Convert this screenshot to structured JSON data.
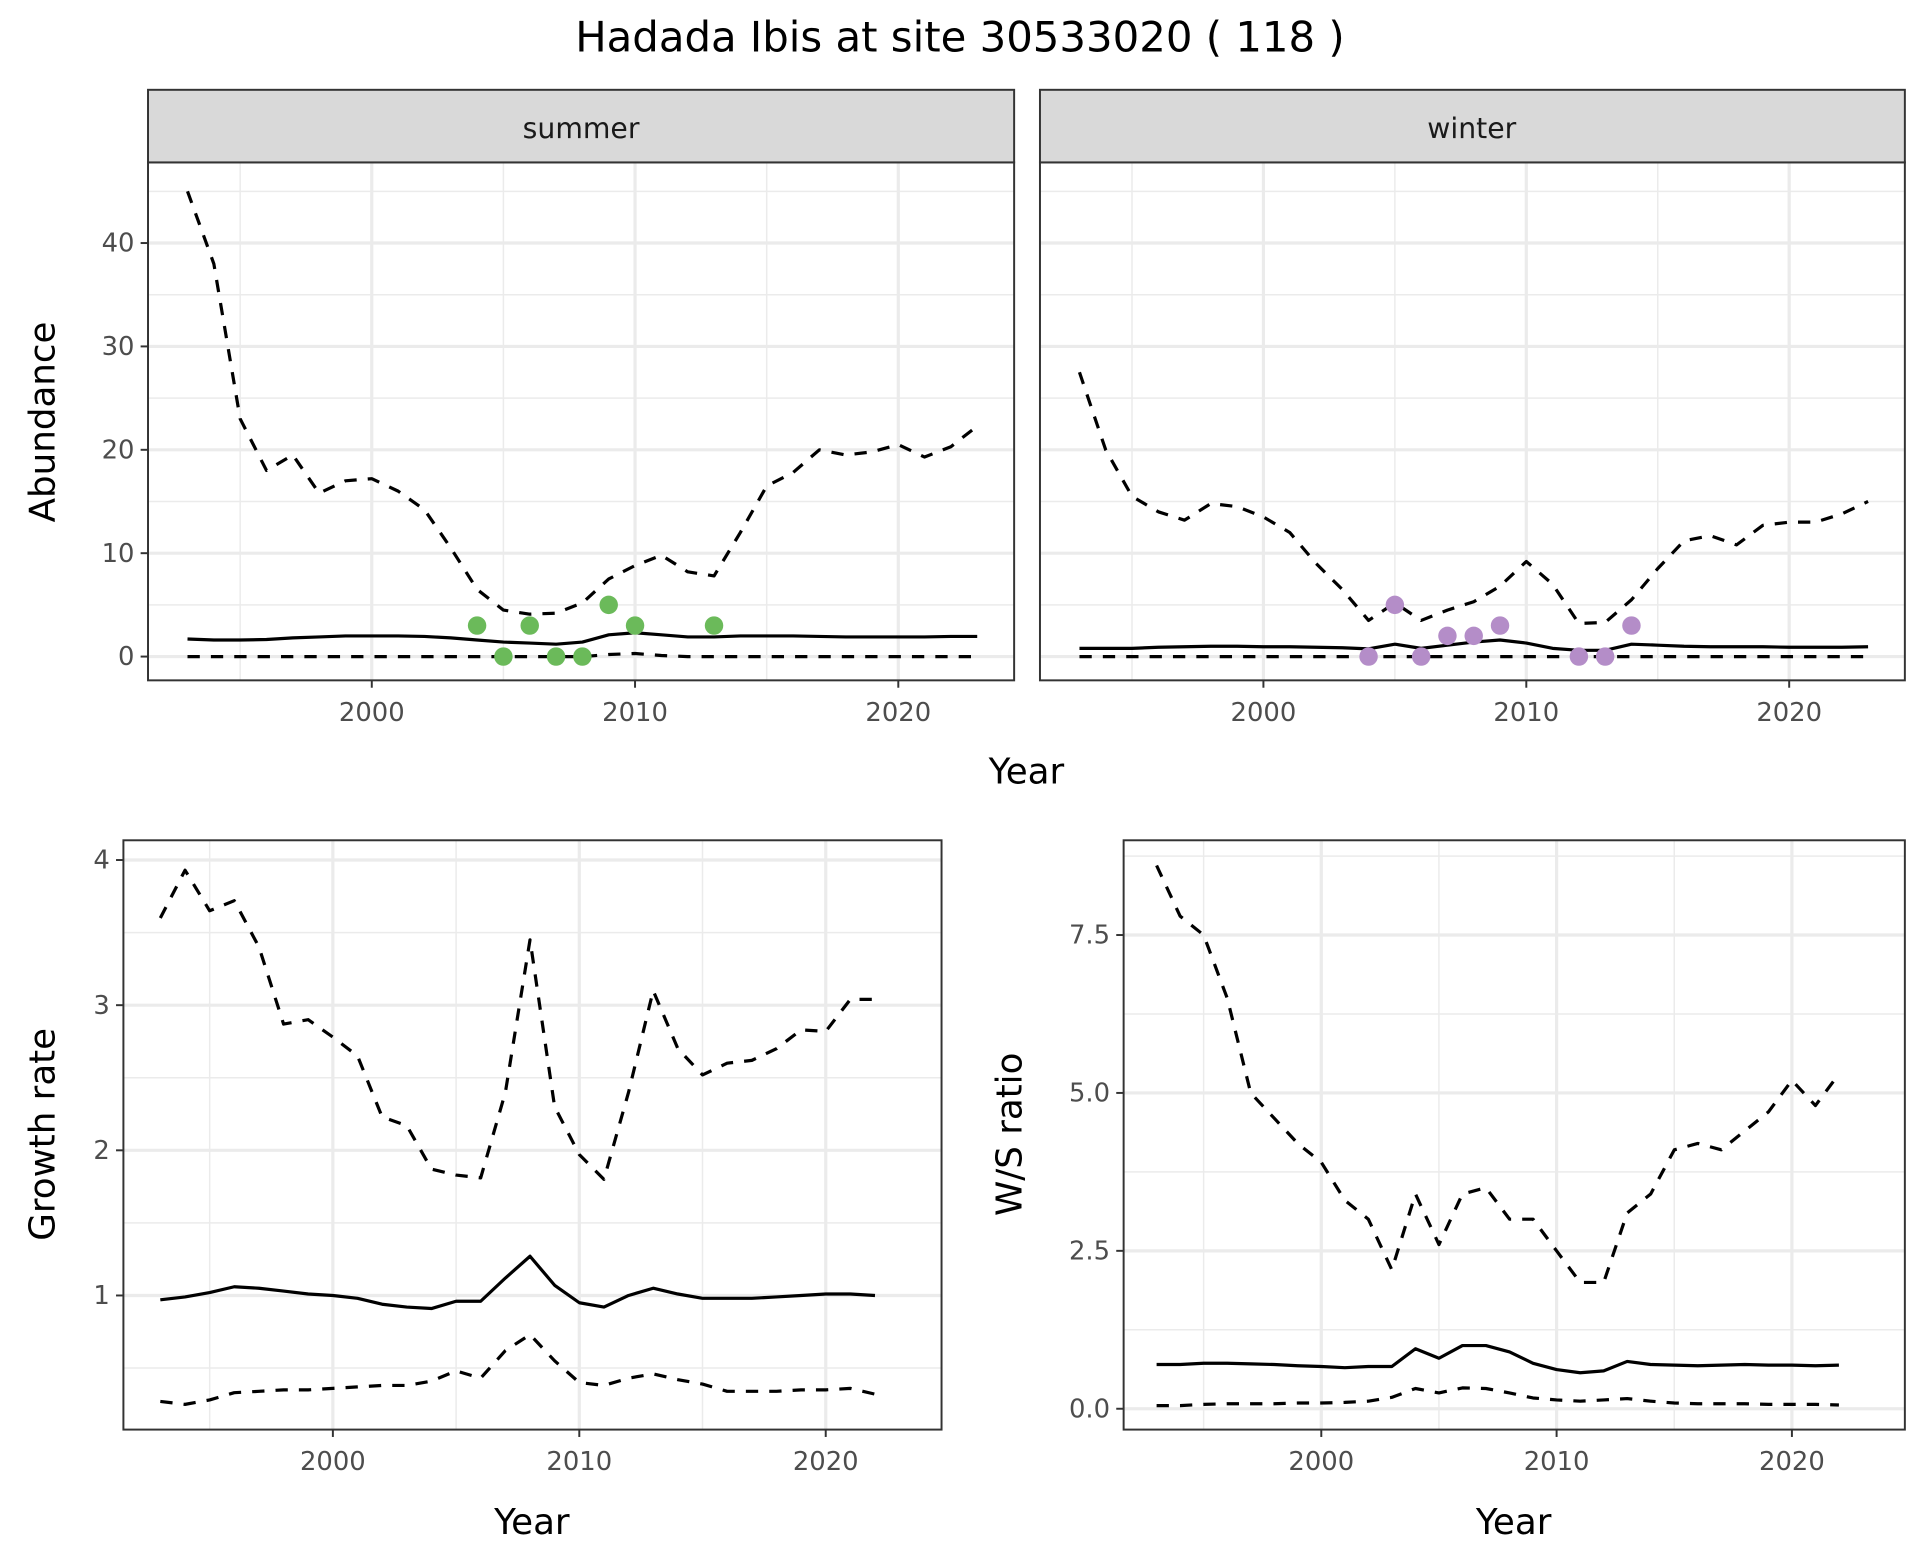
{
  "title": "Hadada Ibis at site 30533020 ( 118 )",
  "colors": {
    "summer_points": "#6BBA5A",
    "winter_points": "#B48DC8",
    "line": "#000000"
  },
  "chart_data": [
    {
      "type": "line",
      "facet": "summer",
      "xlabel": "Year",
      "ylabel": "Abundance",
      "xlim": [
        1991.5,
        2024.4
      ],
      "ylim": [
        -2.3,
        47.8
      ],
      "xticks": [
        2000,
        2010,
        2020
      ],
      "yticks": [
        0,
        10,
        20,
        30,
        40
      ],
      "grid": true,
      "x": [
        1993,
        1994,
        1995,
        1996,
        1997,
        1998,
        1999,
        2000,
        2001,
        2002,
        2003,
        2004,
        2005,
        2006,
        2007,
        2008,
        2009,
        2010,
        2011,
        2012,
        2013,
        2014,
        2015,
        2016,
        2017,
        2018,
        2019,
        2020,
        2021,
        2022,
        2023
      ],
      "series": [
        {
          "style": "dashed",
          "values": [
            45,
            38,
            23,
            18,
            19.5,
            15.8,
            17,
            17.2,
            16,
            14.2,
            10.5,
            6.5,
            4.5,
            4.1,
            4.2,
            5.2,
            7.5,
            8.8,
            9.8,
            8.2,
            7.8,
            12,
            16.5,
            17.8,
            20,
            19.5,
            19.8,
            20.5,
            19.3,
            20.3,
            22.3
          ]
        },
        {
          "style": "solid",
          "values": [
            1.7,
            1.6,
            1.6,
            1.65,
            1.8,
            1.9,
            2,
            2,
            2,
            1.95,
            1.8,
            1.6,
            1.4,
            1.3,
            1.2,
            1.4,
            2.1,
            2.3,
            2.1,
            1.9,
            1.9,
            2,
            2,
            2,
            1.95,
            1.9,
            1.9,
            1.9,
            1.9,
            1.95,
            1.95
          ]
        },
        {
          "style": "dashed",
          "values": [
            0,
            0,
            0,
            0,
            0,
            0,
            0,
            0,
            0,
            0,
            0,
            0,
            0,
            0,
            0,
            0,
            0.2,
            0.3,
            0.1,
            0,
            0,
            0,
            0,
            0,
            0,
            0,
            0,
            0,
            0,
            0,
            0
          ]
        }
      ],
      "points": {
        "x": [
          2004,
          2005,
          2006,
          2007,
          2008,
          2009,
          2010,
          2013
        ],
        "y": [
          3,
          0,
          3,
          0,
          0,
          5,
          3,
          3
        ]
      }
    },
    {
      "type": "line",
      "facet": "winter",
      "xlabel": "Year",
      "ylabel": "Abundance",
      "xlim": [
        1991.5,
        2024.4
      ],
      "ylim": [
        -2.3,
        47.8
      ],
      "xticks": [
        2000,
        2010,
        2020
      ],
      "yticks": [
        0,
        10,
        20,
        30,
        40
      ],
      "grid": true,
      "x": [
        1993,
        1994,
        1995,
        1996,
        1997,
        1998,
        1999,
        2000,
        2001,
        2002,
        2003,
        2004,
        2005,
        2006,
        2007,
        2008,
        2009,
        2010,
        2011,
        2012,
        2013,
        2014,
        2015,
        2016,
        2017,
        2018,
        2019,
        2020,
        2021,
        2022,
        2023
      ],
      "series": [
        {
          "style": "dashed",
          "values": [
            27.5,
            20,
            15.5,
            14,
            13.2,
            14.8,
            14.5,
            13.5,
            12,
            9,
            6.5,
            3.5,
            5.2,
            3.5,
            4.5,
            5.3,
            6.8,
            9.2,
            7,
            3.2,
            3.3,
            5.5,
            8.5,
            11.2,
            11.7,
            10.8,
            12.7,
            13,
            13,
            13.8,
            15
          ]
        },
        {
          "style": "solid",
          "values": [
            0.8,
            0.8,
            0.8,
            0.9,
            0.95,
            1,
            1,
            0.95,
            0.95,
            0.9,
            0.85,
            0.75,
            1.2,
            0.8,
            1.1,
            1.4,
            1.6,
            1.3,
            0.8,
            0.6,
            0.6,
            1.2,
            1.1,
            1,
            0.95,
            0.95,
            0.95,
            0.9,
            0.9,
            0.9,
            0.95
          ]
        },
        {
          "style": "dashed",
          "values": [
            0,
            0,
            0,
            0,
            0,
            0,
            0,
            0,
            0,
            0,
            0,
            0,
            0,
            0,
            0,
            0,
            0,
            0,
            0,
            0,
            0,
            0,
            0,
            0,
            0,
            0,
            0,
            0,
            0,
            0,
            0
          ]
        }
      ],
      "points": {
        "x": [
          2004,
          2005,
          2006,
          2007,
          2008,
          2009,
          2012,
          2013,
          2014
        ],
        "y": [
          0,
          5,
          0,
          2,
          2,
          3,
          0,
          0,
          3
        ]
      }
    },
    {
      "type": "line",
      "xlabel": "Year",
      "ylabel": "Growth rate",
      "xlim": [
        1991.5,
        2024.7
      ],
      "ylim": [
        0.076,
        4.136
      ],
      "xticks": [
        2000,
        2010,
        2020
      ],
      "yticks": [
        1,
        2,
        3,
        4
      ],
      "grid": true,
      "x": [
        1993,
        1994,
        1995,
        1996,
        1997,
        1998,
        1999,
        2000,
        2001,
        2002,
        2003,
        2004,
        2005,
        2006,
        2007,
        2008,
        2009,
        2010,
        2011,
        2012,
        2013,
        2014,
        2015,
        2016,
        2017,
        2018,
        2019,
        2020,
        2021,
        2022
      ],
      "series": [
        {
          "style": "dashed",
          "values": [
            3.6,
            3.93,
            3.65,
            3.72,
            3.4,
            2.87,
            2.9,
            2.78,
            2.65,
            2.23,
            2.17,
            1.87,
            1.83,
            1.81,
            2.4,
            3.45,
            2.3,
            1.97,
            1.8,
            2.4,
            3.1,
            2.7,
            2.52,
            2.6,
            2.62,
            2.7,
            2.83,
            2.82,
            3.04,
            3.04
          ]
        },
        {
          "style": "solid",
          "values": [
            0.97,
            0.99,
            1.02,
            1.06,
            1.05,
            1.03,
            1.01,
            1,
            0.98,
            0.94,
            0.92,
            0.91,
            0.96,
            0.96,
            1.12,
            1.27,
            1.07,
            0.95,
            0.92,
            1,
            1.05,
            1.01,
            0.98,
            0.98,
            0.98,
            0.99,
            1,
            1.01,
            1.01,
            1
          ]
        },
        {
          "style": "dashed",
          "values": [
            0.27,
            0.25,
            0.28,
            0.33,
            0.34,
            0.35,
            0.35,
            0.36,
            0.37,
            0.38,
            0.38,
            0.41,
            0.48,
            0.43,
            0.62,
            0.73,
            0.55,
            0.4,
            0.38,
            0.43,
            0.46,
            0.42,
            0.39,
            0.34,
            0.34,
            0.34,
            0.35,
            0.35,
            0.36,
            0.32
          ]
        }
      ]
    },
    {
      "type": "line",
      "xlabel": "Year",
      "ylabel": "W/S ratio",
      "xlim": [
        1991.6,
        2024.8
      ],
      "ylim": [
        -0.33,
        9.0
      ],
      "xticks": [
        2000,
        2010,
        2020
      ],
      "yticks": [
        0,
        2.5,
        5,
        7.5
      ],
      "ytick_labels": [
        "0.0",
        "2.5",
        "5.0",
        "7.5"
      ],
      "grid": true,
      "x": [
        1993,
        1994,
        1995,
        1996,
        1997,
        1998,
        1999,
        2000,
        2001,
        2002,
        2003,
        2004,
        2005,
        2006,
        2007,
        2008,
        2009,
        2010,
        2011,
        2012,
        2013,
        2014,
        2015,
        2016,
        2017,
        2018,
        2019,
        2020,
        2021,
        2022
      ],
      "series": [
        {
          "style": "dashed",
          "values": [
            8.6,
            7.8,
            7.5,
            6.5,
            5,
            4.6,
            4.2,
            3.9,
            3.3,
            3,
            2.2,
            3.4,
            2.6,
            3.4,
            3.5,
            3,
            3,
            2.5,
            2,
            2,
            3.1,
            3.4,
            4.1,
            4.2,
            4.1,
            4.4,
            4.7,
            5.2,
            4.8,
            5.3
          ]
        },
        {
          "style": "solid",
          "values": [
            0.7,
            0.7,
            0.72,
            0.72,
            0.71,
            0.7,
            0.68,
            0.67,
            0.65,
            0.67,
            0.67,
            0.95,
            0.8,
            1,
            1,
            0.9,
            0.72,
            0.62,
            0.57,
            0.6,
            0.75,
            0.7,
            0.69,
            0.68,
            0.69,
            0.7,
            0.69,
            0.69,
            0.68,
            0.69
          ]
        },
        {
          "style": "dashed",
          "values": [
            0.05,
            0.05,
            0.07,
            0.08,
            0.08,
            0.08,
            0.09,
            0.09,
            0.1,
            0.12,
            0.18,
            0.32,
            0.25,
            0.33,
            0.32,
            0.25,
            0.17,
            0.14,
            0.12,
            0.14,
            0.16,
            0.12,
            0.09,
            0.08,
            0.08,
            0.08,
            0.07,
            0.07,
            0.07,
            0.06
          ]
        }
      ]
    }
  ]
}
